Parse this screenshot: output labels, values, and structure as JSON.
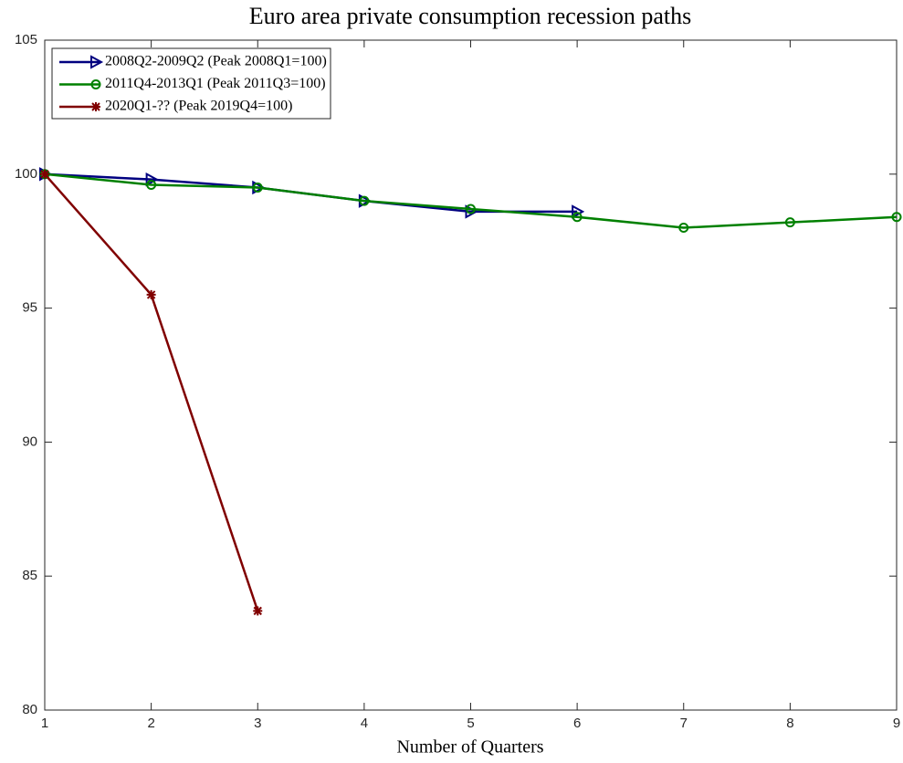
{
  "chart_data": {
    "type": "line",
    "title": "Euro area private consumption recession paths",
    "x_label": "Number of Quarters",
    "xlim": [
      1,
      9
    ],
    "xticks": [
      1,
      2,
      3,
      4,
      5,
      6,
      7,
      8,
      9
    ],
    "ylim": [
      80,
      105
    ],
    "yticks": [
      80,
      85,
      90,
      95,
      100,
      105
    ],
    "legend": "upper-left",
    "series": [
      {
        "name": "2008Q2-2009Q2 (Peak 2008Q1=100)",
        "color": "#000080",
        "marker": "triangle-right",
        "x": [
          1,
          2,
          3,
          4,
          5,
          6
        ],
        "values": [
          100,
          99.8,
          99.5,
          99.0,
          98.6,
          98.6
        ]
      },
      {
        "name": "2011Q4-2013Q1 (Peak 2011Q3=100)",
        "color": "#008000",
        "marker": "circle",
        "x": [
          1,
          2,
          3,
          4,
          5,
          6,
          7,
          8,
          9
        ],
        "values": [
          100,
          99.6,
          99.5,
          99.0,
          98.7,
          98.4,
          98.0,
          98.2,
          98.4
        ]
      },
      {
        "name": "2020Q1-?? (Peak 2019Q4=100)",
        "color": "#800000",
        "marker": "asterisk",
        "x": [
          1,
          2,
          3
        ],
        "values": [
          100,
          95.5,
          83.7
        ]
      }
    ]
  }
}
